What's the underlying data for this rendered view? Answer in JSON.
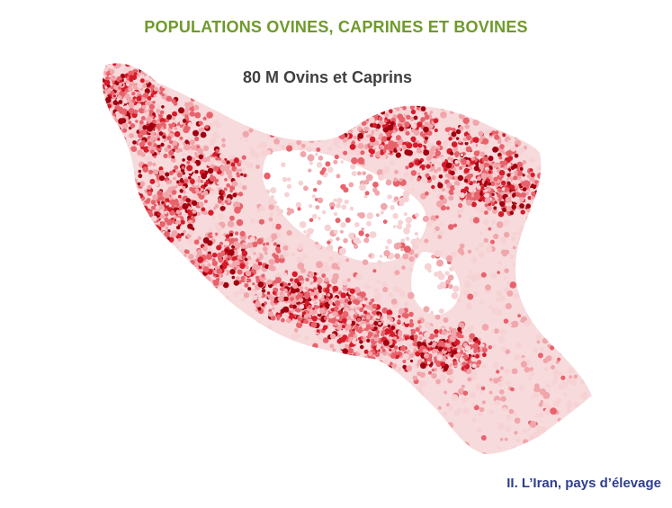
{
  "slide": {
    "title": "POPULATIONS OVINES, CAPRINES ET BOVINES",
    "subtitle": "80 M Ovins et Caprins",
    "footer": "II. L’Iran,  pays d’élevage"
  },
  "map": {
    "region": "Iran",
    "marker": "dot-density",
    "colors": {
      "base": "#f6d2d4",
      "light": "#f0a6ab",
      "medium": "#e8626c",
      "strong": "#d61b2a",
      "dark": "#a0000f"
    },
    "title_color": "#6f9a2b",
    "footer_color": "#2f3e8f"
  }
}
